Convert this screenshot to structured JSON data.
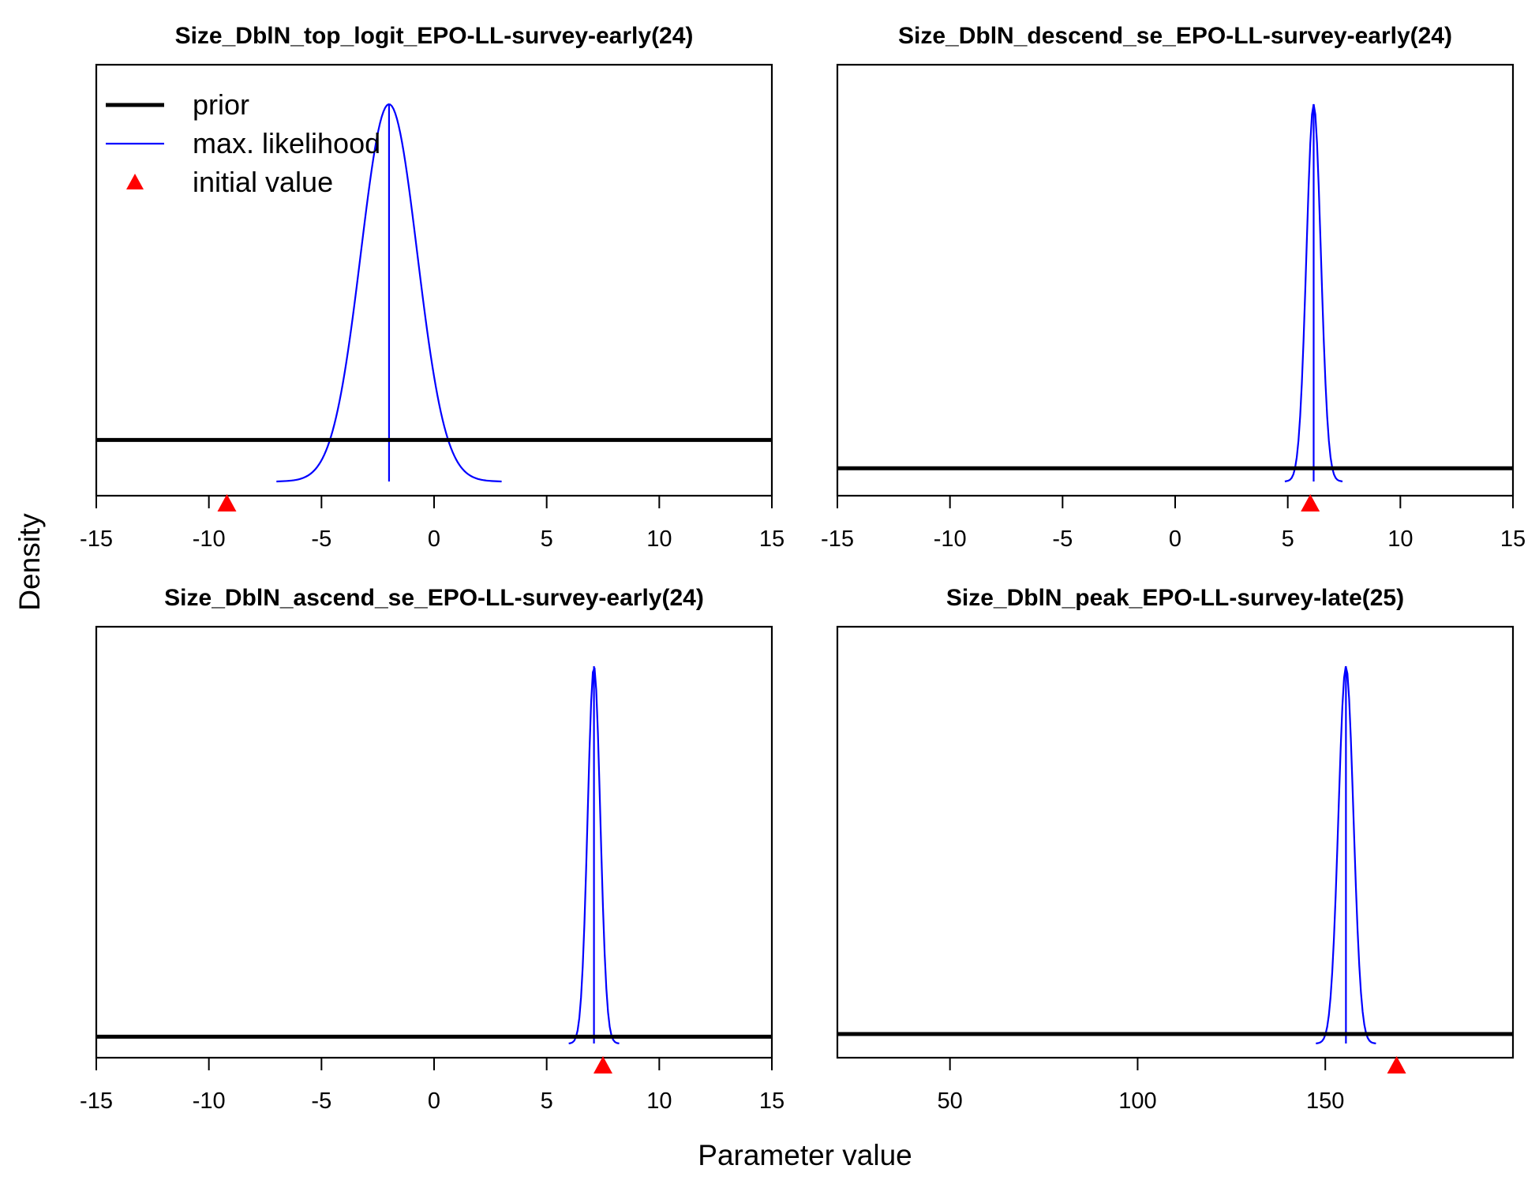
{
  "figure": {
    "ylabel": "Density",
    "xlabel": "Parameter value",
    "legend": {
      "placement": "top-left of first panel",
      "items": [
        {
          "label": "prior",
          "kind": "line-thick",
          "color": "#000000"
        },
        {
          "label": "max. likelihood",
          "kind": "line-thin",
          "color": "#0000ff"
        },
        {
          "label": "initial value",
          "kind": "triangle",
          "color": "#ff0000"
        }
      ]
    }
  },
  "colors": {
    "prior": "#000000",
    "max_likelihood": "#0000ff",
    "initial_value": "#ff0000"
  },
  "chart_data": [
    {
      "type": "line",
      "title": "Size_DblN_top_logit_EPO-LL-survey-early(24)",
      "xlim": [
        -15,
        15
      ],
      "xticks": [
        -15,
        -10,
        -5,
        0,
        5,
        10,
        15
      ],
      "mle": 2.0,
      "mle_sign": -1,
      "sd": 1.25,
      "mle_peak_density": 1.0,
      "prior_density": 0.11,
      "initial_value": -9.2
    },
    {
      "type": "line",
      "title": "Size_DblN_descend_se_EPO-LL-survey-early(24)",
      "xlim": [
        -15,
        15
      ],
      "xticks": [
        -15,
        -10,
        -5,
        0,
        5,
        10,
        15
      ],
      "mle": 6.15,
      "mle_sign": 1,
      "sd": 0.32,
      "mle_peak_density": 1.0,
      "prior_density": 0.035,
      "initial_value": 6.0
    },
    {
      "type": "line",
      "title": "Size_DblN_ascend_se_EPO-LL-survey-early(24)",
      "xlim": [
        -15,
        15
      ],
      "xticks": [
        -15,
        -10,
        -5,
        0,
        5,
        10,
        15
      ],
      "mle": 7.1,
      "mle_sign": 1,
      "sd": 0.28,
      "mle_peak_density": 1.0,
      "prior_density": 0.018,
      "initial_value": 7.5
    },
    {
      "type": "line",
      "title": "Size_DblN_peak_EPO-LL-survey-late(25)",
      "xlim": [
        20,
        200
      ],
      "xticks": [
        50,
        100,
        150
      ],
      "mle": 155.5,
      "mle_sign": 1,
      "sd": 2.0,
      "mle_peak_density": 1.0,
      "prior_density": 0.025,
      "initial_value": 169
    }
  ]
}
